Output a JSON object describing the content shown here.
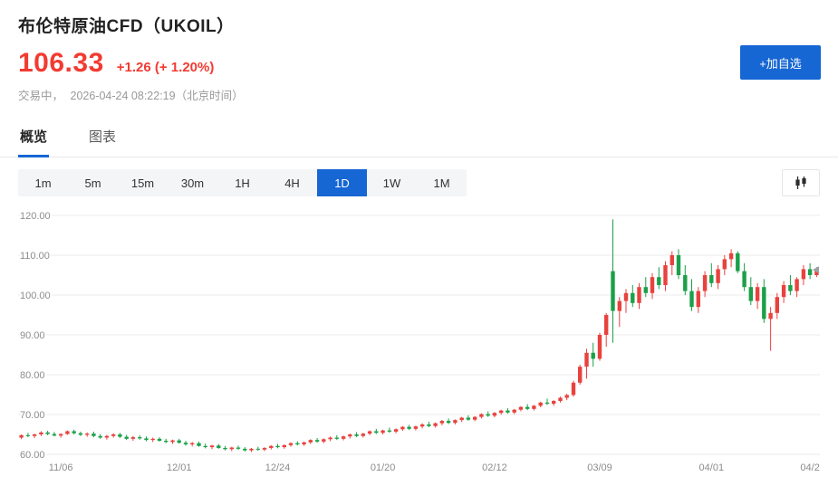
{
  "header": {
    "title": "布伦特原油CFD（UKOIL）",
    "price": "106.33",
    "change": "+1.26 (+ 1.20%)",
    "market_state": "交易中，",
    "timestamp": "2026-04-24 08:22:19（北京时间）",
    "add_watchlist_label": "+加自选"
  },
  "colors": {
    "price_red": "#f23b31",
    "accent_blue": "#1666d4"
  },
  "icons": {
    "chart_style_button": "candlestick-chart-icon"
  },
  "tabs": [
    {
      "label": "概览",
      "active": true
    },
    {
      "label": "图表",
      "active": false
    }
  ],
  "timeframes": [
    {
      "label": "1m",
      "active": false
    },
    {
      "label": "5m",
      "active": false
    },
    {
      "label": "15m",
      "active": false
    },
    {
      "label": "30m",
      "active": false
    },
    {
      "label": "1H",
      "active": false
    },
    {
      "label": "4H",
      "active": false
    },
    {
      "label": "1D",
      "active": true
    },
    {
      "label": "1W",
      "active": false
    },
    {
      "label": "1M",
      "active": false
    }
  ],
  "chart_data": {
    "type": "candlestick",
    "title": "布伦特原油CFD日K线",
    "ylim": [
      60,
      120
    ],
    "y_ticks": [
      "120.00",
      "110.00",
      "100.00",
      "90.00",
      "80.00",
      "70.00",
      "60.00"
    ],
    "x_labels": [
      {
        "index": 6,
        "label": "11/06"
      },
      {
        "index": 24,
        "label": "12/01"
      },
      {
        "index": 39,
        "label": "12/24"
      },
      {
        "index": 55,
        "label": "01/20"
      },
      {
        "index": 72,
        "label": "02/12"
      },
      {
        "index": 88,
        "label": "03/09"
      },
      {
        "index": 105,
        "label": "04/01"
      },
      {
        "index": 120,
        "label": "04/2"
      }
    ],
    "up_color": "#e8423e",
    "down_color": "#1ba049",
    "grid_color": "#ebebeb",
    "axis_text_color": "#8c8c8c",
    "candles": [
      [
        64.2,
        65.0,
        63.8,
        64.8
      ],
      [
        64.8,
        65.4,
        64.3,
        64.6
      ],
      [
        64.6,
        65.2,
        64.1,
        65.0
      ],
      [
        65.0,
        65.8,
        64.6,
        65.5
      ],
      [
        65.5,
        65.9,
        64.8,
        65.1
      ],
      [
        65.1,
        65.6,
        64.5,
        64.7
      ],
      [
        64.7,
        65.3,
        64.2,
        65.1
      ],
      [
        65.1,
        66.0,
        64.9,
        65.8
      ],
      [
        65.8,
        66.2,
        65.0,
        65.3
      ],
      [
        65.3,
        65.7,
        64.6,
        64.9
      ],
      [
        64.9,
        65.5,
        64.4,
        65.2
      ],
      [
        65.2,
        65.7,
        64.3,
        64.6
      ],
      [
        64.6,
        65.1,
        63.9,
        64.2
      ],
      [
        64.2,
        64.9,
        63.7,
        64.6
      ],
      [
        64.6,
        65.3,
        64.2,
        65.0
      ],
      [
        65.0,
        65.4,
        64.1,
        64.4
      ],
      [
        64.4,
        64.9,
        63.6,
        63.9
      ],
      [
        63.9,
        64.6,
        63.4,
        64.3
      ],
      [
        64.3,
        64.8,
        63.7,
        64.0
      ],
      [
        64.0,
        64.5,
        63.3,
        63.6
      ],
      [
        63.6,
        64.2,
        63.1,
        63.9
      ],
      [
        63.9,
        64.3,
        63.2,
        63.4
      ],
      [
        63.4,
        63.9,
        62.8,
        63.1
      ],
      [
        63.1,
        63.7,
        62.6,
        63.5
      ],
      [
        63.5,
        63.9,
        62.7,
        62.9
      ],
      [
        62.9,
        63.4,
        62.2,
        62.5
      ],
      [
        62.5,
        63.1,
        62.0,
        62.8
      ],
      [
        62.8,
        63.2,
        61.9,
        62.1
      ],
      [
        62.1,
        62.7,
        61.5,
        61.8
      ],
      [
        61.8,
        62.4,
        61.3,
        62.2
      ],
      [
        62.2,
        62.6,
        61.4,
        61.6
      ],
      [
        61.6,
        62.1,
        61.0,
        61.3
      ],
      [
        61.3,
        61.9,
        60.8,
        61.7
      ],
      [
        61.7,
        62.2,
        61.1,
        61.4
      ],
      [
        61.4,
        61.8,
        60.7,
        61.0
      ],
      [
        61.0,
        61.6,
        60.6,
        61.4
      ],
      [
        61.4,
        61.9,
        60.9,
        61.2
      ],
      [
        61.2,
        61.8,
        60.8,
        61.6
      ],
      [
        61.6,
        62.3,
        61.2,
        62.1
      ],
      [
        62.1,
        62.6,
        61.5,
        61.8
      ],
      [
        61.8,
        62.5,
        61.4,
        62.3
      ],
      [
        62.3,
        63.0,
        61.9,
        62.8
      ],
      [
        62.8,
        63.3,
        62.2,
        62.5
      ],
      [
        62.5,
        63.2,
        62.1,
        63.0
      ],
      [
        63.0,
        63.8,
        62.6,
        63.6
      ],
      [
        63.6,
        64.1,
        62.9,
        63.2
      ],
      [
        63.2,
        64.0,
        62.8,
        63.8
      ],
      [
        63.8,
        64.5,
        63.3,
        64.2
      ],
      [
        64.2,
        64.8,
        63.6,
        63.9
      ],
      [
        63.9,
        64.7,
        63.5,
        64.5
      ],
      [
        64.5,
        65.2,
        64.0,
        65.0
      ],
      [
        65.0,
        65.6,
        64.3,
        64.6
      ],
      [
        64.6,
        65.4,
        64.2,
        65.2
      ],
      [
        65.2,
        66.0,
        64.8,
        65.8
      ],
      [
        65.8,
        66.4,
        65.1,
        65.4
      ],
      [
        65.4,
        66.2,
        65.0,
        66.0
      ],
      [
        66.0,
        66.7,
        65.4,
        65.7
      ],
      [
        65.7,
        66.5,
        65.3,
        66.3
      ],
      [
        66.3,
        67.1,
        65.9,
        66.9
      ],
      [
        66.9,
        67.4,
        66.1,
        66.4
      ],
      [
        66.4,
        67.2,
        66.0,
        67.0
      ],
      [
        67.0,
        67.8,
        66.5,
        67.5
      ],
      [
        67.5,
        68.2,
        66.8,
        67.1
      ],
      [
        67.1,
        68.0,
        66.7,
        67.8
      ],
      [
        67.8,
        68.6,
        67.3,
        68.4
      ],
      [
        68.4,
        69.0,
        67.6,
        67.9
      ],
      [
        67.9,
        68.8,
        67.5,
        68.6
      ],
      [
        68.6,
        69.4,
        68.1,
        69.2
      ],
      [
        69.2,
        69.8,
        68.4,
        68.7
      ],
      [
        68.7,
        69.6,
        68.3,
        69.4
      ],
      [
        69.4,
        70.3,
        69.0,
        70.1
      ],
      [
        70.1,
        70.8,
        69.4,
        69.7
      ],
      [
        69.7,
        70.6,
        69.3,
        70.4
      ],
      [
        70.4,
        71.2,
        70.0,
        71.0
      ],
      [
        71.0,
        71.6,
        70.2,
        70.5
      ],
      [
        70.5,
        71.4,
        70.1,
        71.2
      ],
      [
        71.2,
        72.1,
        70.8,
        71.9
      ],
      [
        71.9,
        72.6,
        71.1,
        71.4
      ],
      [
        71.4,
        72.4,
        71.0,
        72.2
      ],
      [
        72.2,
        73.2,
        71.8,
        73.0
      ],
      [
        73.0,
        74.0,
        72.4,
        72.7
      ],
      [
        72.7,
        73.6,
        72.2,
        73.4
      ],
      [
        73.4,
        74.5,
        73.0,
        74.2
      ],
      [
        74.2,
        75.2,
        73.6,
        74.9
      ],
      [
        74.9,
        78.5,
        74.5,
        78.0
      ],
      [
        78.0,
        82.5,
        77.5,
        82.0
      ],
      [
        82.0,
        86.5,
        79.0,
        85.5
      ],
      [
        85.5,
        88.0,
        82.0,
        84.0
      ],
      [
        84.0,
        90.5,
        83.5,
        90.0
      ],
      [
        90.0,
        95.5,
        87.0,
        95.0
      ],
      [
        106.0,
        119.0,
        88.0,
        96.0
      ],
      [
        96.0,
        99.5,
        92.0,
        98.5
      ],
      [
        98.5,
        101.5,
        95.5,
        100.5
      ],
      [
        100.5,
        102.5,
        97.0,
        98.0
      ],
      [
        98.0,
        103.0,
        96.5,
        102.0
      ],
      [
        102.0,
        104.5,
        99.5,
        100.5
      ],
      [
        100.5,
        105.5,
        99.0,
        104.5
      ],
      [
        104.5,
        107.0,
        101.5,
        102.5
      ],
      [
        102.5,
        108.5,
        101.0,
        107.5
      ],
      [
        107.5,
        111.0,
        105.0,
        110.0
      ],
      [
        110.0,
        111.5,
        104.0,
        105.0
      ],
      [
        105.0,
        107.5,
        100.0,
        101.0
      ],
      [
        101.0,
        104.0,
        96.0,
        97.0
      ],
      [
        97.0,
        102.0,
        95.5,
        101.0
      ],
      [
        101.0,
        106.0,
        99.5,
        105.0
      ],
      [
        105.0,
        108.0,
        102.0,
        103.0
      ],
      [
        103.0,
        107.5,
        101.5,
        106.5
      ],
      [
        106.5,
        110.0,
        105.0,
        109.0
      ],
      [
        109.0,
        111.5,
        107.0,
        110.5
      ],
      [
        110.5,
        111.0,
        105.5,
        106.0
      ],
      [
        106.0,
        108.0,
        101.0,
        102.0
      ],
      [
        102.0,
        104.5,
        97.5,
        98.5
      ],
      [
        98.5,
        103.0,
        96.5,
        102.0
      ],
      [
        102.0,
        104.0,
        93.0,
        94.0
      ],
      [
        94.0,
        97.0,
        86.0,
        95.5
      ],
      [
        95.5,
        100.5,
        94.0,
        99.5
      ],
      [
        99.5,
        103.5,
        98.0,
        102.5
      ],
      [
        102.5,
        105.0,
        100.0,
        101.0
      ],
      [
        101.0,
        104.5,
        99.5,
        104.0
      ],
      [
        104.0,
        107.5,
        102.5,
        106.5
      ],
      [
        106.5,
        108.0,
        104.0,
        105.0
      ],
      [
        105.0,
        107.0,
        104.5,
        106.33
      ]
    ]
  }
}
